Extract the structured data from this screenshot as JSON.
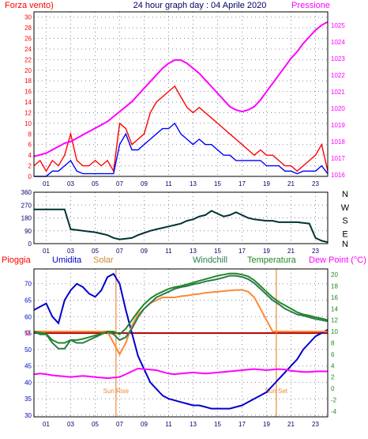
{
  "header": {
    "left_label": "Forza vento)",
    "title": "24 hour graph day : 04 Aprile 2020",
    "right_label": "Pressione"
  },
  "colors": {
    "wind": "#ff0000",
    "gust_avg": "#0000ff",
    "pressure": "#ff00ff",
    "direction": "#003333",
    "rain": "#aa0000",
    "humidity": "#0000cc",
    "solar": "#ff8833",
    "windchill": "#2a7a52",
    "temperature": "#228822",
    "dewpoint": "#ff00ff",
    "sun_marker": "#ee8833",
    "grid": "#8888aa",
    "frame": "#000000"
  },
  "chart_data": [
    {
      "type": "line",
      "name": "wind-pressure",
      "left_axis": {
        "ticks": [
          0,
          2,
          4,
          6,
          8,
          10,
          12,
          14,
          16,
          18,
          20,
          22,
          24,
          26,
          28,
          30
        ],
        "range": [
          0,
          31
        ]
      },
      "right_axis": {
        "ticks": [
          1016,
          1017,
          1018,
          1019,
          1020,
          1021,
          1022,
          1023,
          1024,
          1025
        ],
        "range": [
          1015.9,
          1025.8
        ]
      },
      "x_ticks": [
        "01",
        "03",
        "05",
        "07",
        "09",
        "11",
        "13",
        "15",
        "17",
        "19",
        "21",
        "23"
      ],
      "x": [
        0,
        0.5,
        1,
        1.5,
        2,
        2.5,
        3,
        3.5,
        4,
        4.5,
        5,
        5.5,
        6,
        6.5,
        7,
        7.5,
        8,
        8.5,
        9,
        9.5,
        10,
        10.5,
        11,
        11.5,
        12,
        12.5,
        13,
        13.5,
        14,
        14.5,
        15,
        15.5,
        16,
        16.5,
        17,
        17.5,
        18,
        18.5,
        19,
        19.5,
        20,
        20.5,
        21,
        21.5,
        22,
        22.5,
        23,
        23.5,
        24
      ],
      "series": [
        {
          "key": "wind",
          "axis": "left",
          "values": [
            2,
            3,
            1,
            3,
            2,
            4,
            8,
            3,
            2,
            2,
            3,
            2,
            3,
            1,
            10,
            9,
            6,
            7,
            8,
            12,
            14,
            15,
            16,
            17,
            15,
            13,
            12,
            13,
            12,
            11,
            10,
            9,
            8,
            7,
            6,
            5,
            4,
            5,
            4,
            4,
            3,
            2,
            2,
            1,
            2,
            3,
            4,
            6,
            1
          ]
        },
        {
          "key": "gust_avg",
          "axis": "left",
          "values": [
            0,
            0,
            0,
            1,
            1,
            2,
            3,
            1,
            0.5,
            0.5,
            0.5,
            0.5,
            0.5,
            0.5,
            6,
            8,
            5,
            5,
            6,
            7,
            8,
            9,
            9,
            10,
            8,
            7,
            6,
            7,
            6,
            6,
            5,
            4,
            4,
            3,
            3,
            3,
            3,
            3,
            2,
            2,
            2,
            1,
            1,
            0.5,
            1,
            1,
            1,
            2,
            0.5
          ]
        },
        {
          "key": "pressure",
          "axis": "right",
          "values": [
            1017.1,
            1017.2,
            1017.3,
            1017.5,
            1017.7,
            1017.9,
            1018.0,
            1018.2,
            1018.4,
            1018.6,
            1018.8,
            1019.0,
            1019.2,
            1019.5,
            1019.8,
            1020.1,
            1020.4,
            1020.8,
            1021.2,
            1021.6,
            1022.0,
            1022.4,
            1022.7,
            1022.9,
            1022.9,
            1022.7,
            1022.4,
            1022.1,
            1021.7,
            1021.3,
            1020.9,
            1020.5,
            1020.1,
            1019.9,
            1019.8,
            1019.9,
            1020.1,
            1020.5,
            1021.0,
            1021.5,
            1022.0,
            1022.5,
            1023.0,
            1023.4,
            1023.9,
            1024.3,
            1024.7,
            1025.0,
            1025.2
          ]
        }
      ]
    },
    {
      "type": "line",
      "name": "wind-direction",
      "y_axis": {
        "ticks": [
          0,
          90,
          180,
          270,
          360
        ],
        "range": [
          0,
          360
        ]
      },
      "compass_labels": [
        "N",
        "W",
        "S",
        "E",
        "N"
      ],
      "x_ticks": [
        "01",
        "03",
        "05",
        "07",
        "09",
        "11",
        "13",
        "15",
        "17",
        "19",
        "21",
        "23"
      ],
      "x": [
        0,
        0.5,
        1,
        1.5,
        2,
        2.5,
        3,
        3.5,
        4,
        4.5,
        5,
        5.5,
        6,
        6.5,
        7,
        7.5,
        8,
        8.5,
        9,
        9.5,
        10,
        10.5,
        11,
        11.5,
        12,
        12.5,
        13,
        13.5,
        14,
        14.5,
        15,
        15.5,
        16,
        16.5,
        17,
        17.5,
        18,
        18.5,
        19,
        19.5,
        20,
        20.5,
        21,
        21.5,
        22,
        22.5,
        23,
        23.5,
        24
      ],
      "values": [
        240,
        240,
        240,
        240,
        240,
        240,
        100,
        95,
        90,
        85,
        80,
        70,
        60,
        40,
        30,
        35,
        40,
        60,
        75,
        90,
        100,
        110,
        120,
        130,
        140,
        160,
        170,
        190,
        200,
        230,
        210,
        190,
        200,
        220,
        200,
        180,
        170,
        165,
        160,
        160,
        150,
        150,
        150,
        150,
        145,
        140,
        40,
        20,
        10
      ]
    },
    {
      "type": "line",
      "name": "temperature-humidity",
      "left_axis": {
        "ticks": [
          30,
          35,
          40,
          45,
          50,
          55,
          60,
          65,
          70
        ],
        "range": [
          29.5,
          74.5
        ]
      },
      "right_axis": {
        "ticks": [
          -4,
          -2,
          0,
          2,
          4,
          6,
          8,
          10,
          12,
          14,
          16,
          18,
          20
        ],
        "range": [
          -5,
          21
        ]
      },
      "rain_marker": 0,
      "x_ticks": [
        "01",
        "03",
        "05",
        "07",
        "09",
        "11",
        "13",
        "15",
        "17",
        "19",
        "21",
        "23"
      ],
      "x": [
        0,
        0.5,
        1,
        1.5,
        2,
        2.5,
        3,
        3.5,
        4,
        4.5,
        5,
        5.5,
        6,
        6.5,
        7,
        7.5,
        8,
        8.5,
        9,
        9.5,
        10,
        10.5,
        11,
        11.5,
        12,
        12.5,
        13,
        13.5,
        14,
        14.5,
        15,
        15.5,
        16,
        16.5,
        17,
        17.5,
        18,
        18.5,
        19,
        19.5,
        20,
        20.5,
        21,
        21.5,
        22,
        22.5,
        23,
        23.5,
        24
      ],
      "sun_rise": {
        "hour": 6.7,
        "label": "Sun Rise"
      },
      "sun_set": {
        "hour": 19.8,
        "label": "Sun Set"
      },
      "series": [
        {
          "key": "humidity",
          "axis": "left",
          "values": [
            62,
            63,
            64,
            60,
            58,
            65,
            68,
            70,
            69,
            67,
            66,
            68,
            72,
            73,
            70,
            62,
            55,
            48,
            44,
            40,
            38,
            36,
            35,
            34.5,
            34,
            33.5,
            33,
            33,
            32.5,
            32,
            32,
            32,
            32,
            32.5,
            33,
            34,
            35,
            36,
            37,
            39,
            41,
            43,
            45,
            47,
            50,
            52,
            54,
            55,
            56
          ]
        },
        {
          "key": "solar",
          "axis": "right",
          "values": [
            10,
            10,
            10,
            10,
            10,
            10,
            10,
            10,
            10,
            10,
            10,
            10,
            10,
            8,
            6,
            8,
            11,
            13,
            14,
            15,
            15.5,
            16,
            16,
            16,
            16.2,
            16.3,
            16.5,
            16.6,
            16.8,
            16.9,
            17,
            17.1,
            17.2,
            17.3,
            17.3,
            17,
            16,
            14,
            12,
            10,
            10,
            10,
            10,
            10,
            10,
            10,
            10,
            10,
            10
          ]
        },
        {
          "key": "windchill",
          "axis": "right",
          "values": [
            10,
            9.5,
            9.5,
            8,
            7,
            7,
            8.5,
            8,
            8,
            8.5,
            9,
            9.5,
            10,
            9.5,
            8.5,
            9,
            10.5,
            12.5,
            14,
            15,
            16,
            16.5,
            17,
            17.5,
            17.8,
            18,
            18.3,
            18.5,
            18.8,
            19,
            19.2,
            19.5,
            19.8,
            19.8,
            19.6,
            19.2,
            18.5,
            17.5,
            16.5,
            15.5,
            14.8,
            14,
            13.5,
            13,
            12.8,
            12.5,
            12.2,
            12,
            11.8
          ]
        },
        {
          "key": "temperature",
          "axis": "right",
          "values": [
            10,
            9.8,
            9.6,
            8.5,
            8,
            8,
            8.5,
            8.5,
            8.7,
            9,
            9.3,
            9.6,
            10,
            10,
            9.5,
            10.5,
            12,
            13.5,
            14.8,
            15.8,
            16.5,
            17,
            17.5,
            17.8,
            18,
            18.3,
            18.6,
            18.9,
            19.2,
            19.5,
            19.8,
            20,
            20.2,
            20.2,
            20,
            19.7,
            19,
            18,
            17,
            16,
            15.2,
            14.6,
            14,
            13.4,
            13,
            12.8,
            12.5,
            12.3,
            12
          ]
        },
        {
          "key": "dewpoint",
          "axis": "right",
          "values": [
            2.5,
            2.6,
            2.5,
            2.3,
            2.2,
            2.1,
            2,
            2.1,
            2.2,
            2.1,
            2,
            1.9,
            1.8,
            1.9,
            2,
            2.5,
            3,
            3.5,
            3.4,
            3.3,
            3.2,
            2.9,
            2.6,
            2.5,
            2.6,
            2.7,
            2.8,
            2.7,
            2.6,
            2.7,
            2.8,
            2.9,
            3,
            3.1,
            3.2,
            3.3,
            3.4,
            3.3,
            3.2,
            3.3,
            3.4,
            3.3,
            3.1,
            3.0,
            2.9,
            2.9,
            3.0,
            3.0,
            3.0
          ]
        }
      ]
    }
  ],
  "legend": {
    "rain": "Pioggia",
    "humidity": "Umidita",
    "solar": "Solar",
    "windchill": "Windchill",
    "temperature": "Temperatura",
    "dewpoint": "Dew Point (°C)"
  }
}
